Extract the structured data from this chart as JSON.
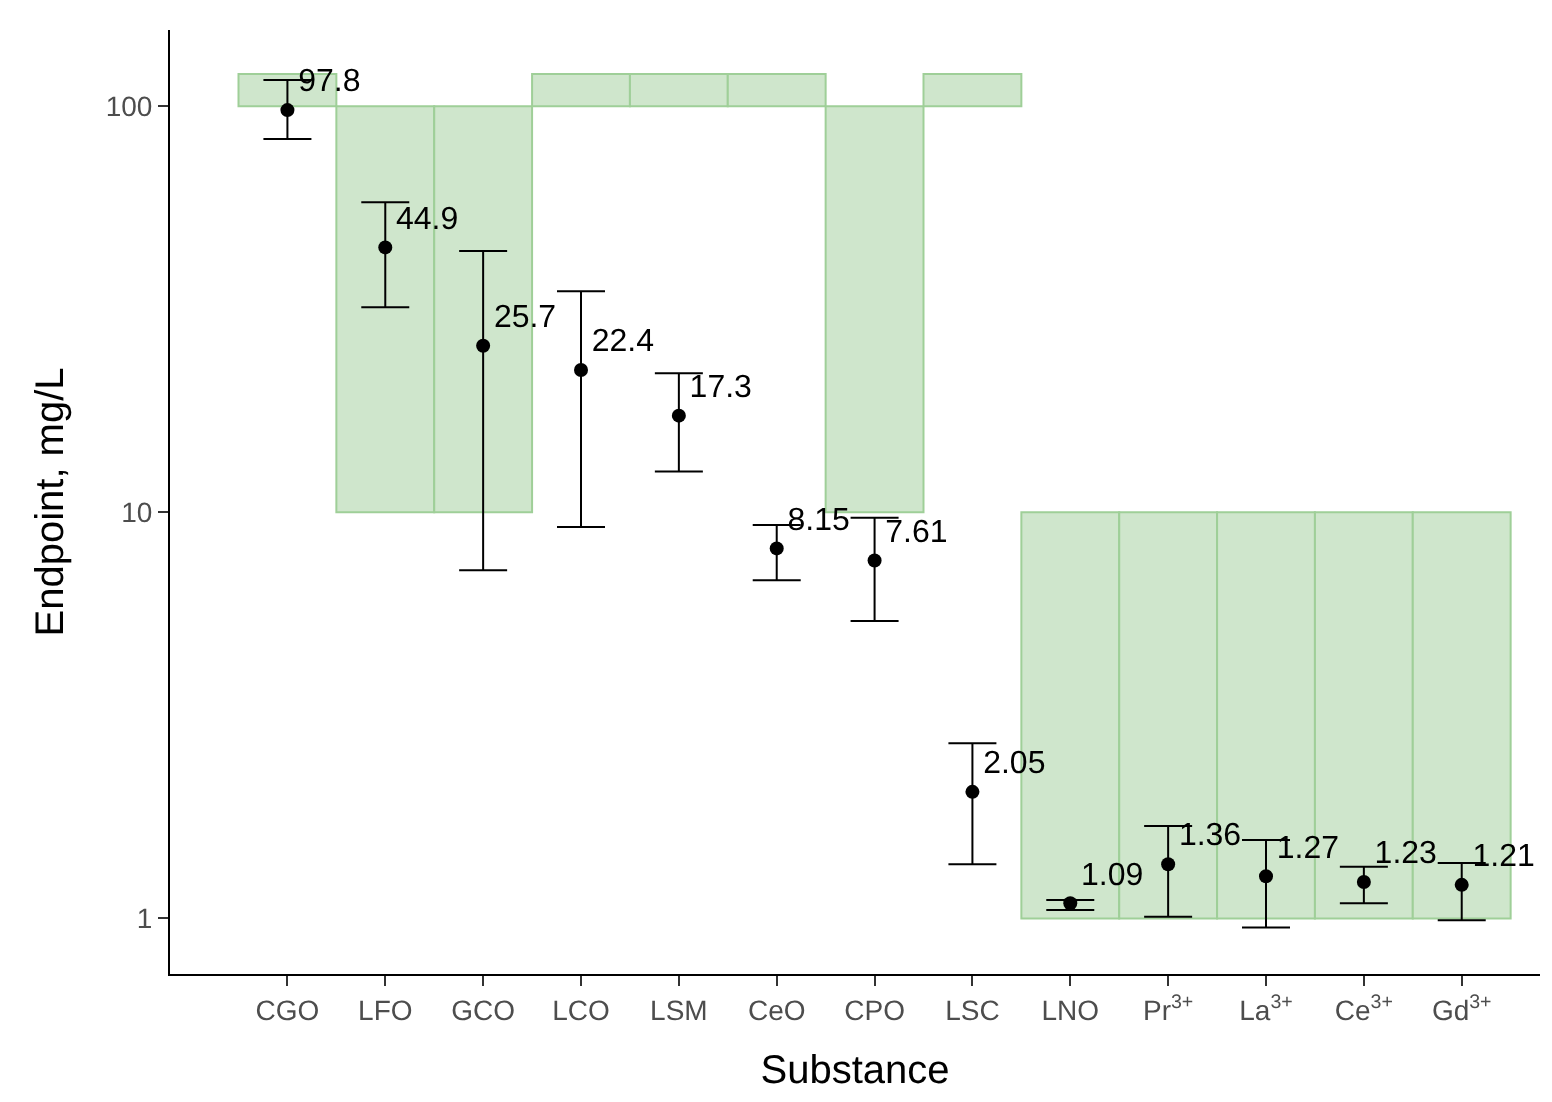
{
  "chart_data": {
    "type": "scatter",
    "xlabel": "Substance",
    "ylabel": "Endpoint, mg/L",
    "categories": [
      "CGO",
      "LFO",
      "GCO",
      "LCO",
      "LSM",
      "CeO",
      "CPO",
      "LSC",
      "LNO",
      "Pr$^{3+}$",
      "La$^{3+}$",
      "Ce$^{3+}$",
      "Gd$^{3+}$"
    ],
    "series": [
      {
        "type": "bar",
        "color": "#cfe6cc",
        "base": [
          100,
          10,
          10,
          100,
          100,
          100,
          10,
          100,
          1,
          1,
          1,
          1,
          1
        ],
        "values": [
          20,
          90,
          90,
          20,
          20,
          20,
          90,
          20,
          9,
          9,
          9,
          9,
          9
        ]
      },
      {
        "color": "#000000",
        "values": [
          97.8,
          44.9,
          25.7,
          22.4,
          17.3,
          8.15,
          7.61,
          2.05,
          1.09,
          1.36,
          1.27,
          1.23,
          1.21
        ],
        "value_labels": [
          "97.8",
          "44.9",
          "25.7",
          "22.4",
          "17.3",
          "8.15",
          "7.61",
          "2.05",
          "1.09",
          "1.36",
          "1.27",
          "1.23",
          "1.21"
        ],
        "errors": [
          [
            83,
            116
          ],
          [
            32,
            58
          ],
          [
            7.2,
            44
          ],
          [
            9.2,
            35
          ],
          [
            12.6,
            22
          ],
          [
            6.8,
            9.3
          ],
          [
            5.4,
            9.7
          ],
          [
            1.36,
            2.7
          ],
          [
            1.05,
            1.11
          ],
          [
            1.01,
            1.69
          ],
          [
            0.95,
            1.56
          ],
          [
            1.09,
            1.34
          ],
          [
            0.99,
            1.37
          ]
        ]
      }
    ],
    "log": "y",
    "ylim": [
      0.73,
      154
    ],
    "yticks": [
      1,
      10,
      100
    ],
    "marker": "circle"
  }
}
